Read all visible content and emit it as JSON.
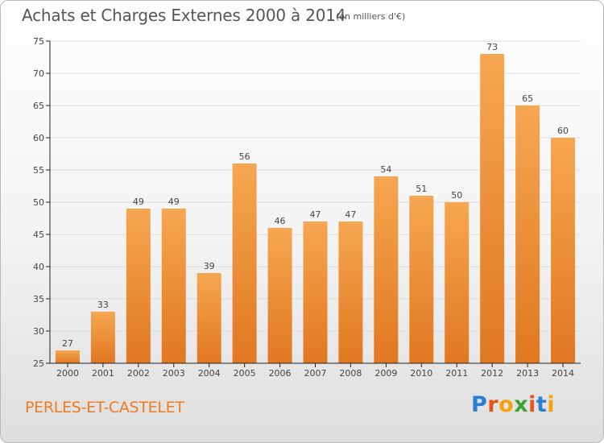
{
  "header": {
    "title": "Achats et Charges Externes 2000 à 2014",
    "unit": "(en milliers d'€)"
  },
  "footer": {
    "place": "PERLES-ET-CASTELET",
    "logo": {
      "text": "Proxiti",
      "colors": [
        "#2b7fd3",
        "#e8501c",
        "#f5a20b",
        "#3aa43a",
        "#e8501c",
        "#2b7fd3",
        "#f5a20b"
      ]
    }
  },
  "colors": {
    "bar_light": "#f7a651",
    "bar_dark": "#e07820",
    "grid": "#dcdcdc",
    "axis": "#222222"
  },
  "chart_data": {
    "type": "bar",
    "categories": [
      "2000",
      "2001",
      "2002",
      "2003",
      "2004",
      "2005",
      "2006",
      "2007",
      "2008",
      "2009",
      "2010",
      "2011",
      "2012",
      "2013",
      "2014"
    ],
    "values": [
      27,
      33,
      49,
      49,
      39,
      56,
      46,
      47,
      47,
      54,
      51,
      50,
      73,
      65,
      60
    ],
    "ylim": [
      25,
      75
    ],
    "yticks": [
      25,
      30,
      35,
      40,
      45,
      50,
      55,
      60,
      65,
      70,
      75
    ],
    "grid": true,
    "data_labels": true
  }
}
